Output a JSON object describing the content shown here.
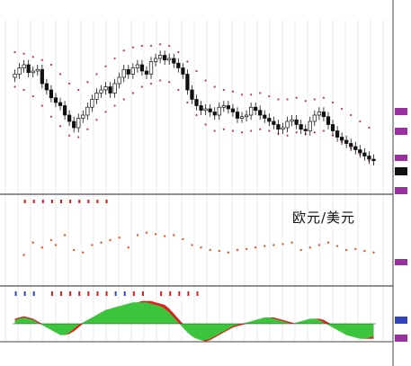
{
  "pair_label": "欧元/美元",
  "colors": {
    "bull": "#ffffff",
    "bear": "#111111",
    "band": "#c0307a",
    "signal_dot": "#e45a2b",
    "osc_green": "#3cc43c",
    "osc_red": "#e02020",
    "marker_blue": "#3344bb",
    "marker_red": "#d02020",
    "grid": "#dddddd",
    "price_tag": "#9a2f9f"
  },
  "chart_data": [
    {
      "type": "candlestick",
      "title": "",
      "xlabel": "",
      "ylabel": "",
      "x": [
        1,
        2,
        3,
        4,
        5,
        6,
        7,
        8,
        9,
        10,
        11,
        12,
        13,
        14,
        15,
        16,
        17,
        18,
        19,
        20,
        21,
        22,
        23,
        24,
        25,
        26,
        27,
        28,
        29,
        30,
        31,
        32,
        33,
        34,
        35,
        36,
        37,
        38,
        39,
        40,
        41,
        42,
        43,
        44,
        45,
        46,
        47,
        48,
        49,
        50,
        51,
        52,
        53,
        54,
        55,
        56,
        57,
        58,
        59,
        60,
        61,
        62,
        63,
        64,
        65,
        66,
        67,
        68,
        69,
        70,
        71,
        72,
        73,
        74,
        75,
        76,
        77,
        78,
        79,
        80
      ],
      "close": [
        70,
        74,
        76,
        71,
        72,
        73,
        64,
        60,
        55,
        52,
        50,
        44,
        40,
        36,
        42,
        44,
        49,
        54,
        58,
        60,
        62,
        58,
        64,
        68,
        73,
        70,
        74,
        76,
        72,
        70,
        78,
        80,
        82,
        79,
        80,
        77,
        74,
        70,
        60,
        54,
        50,
        47,
        48,
        46,
        44,
        49,
        50,
        48,
        46,
        42,
        43,
        44,
        49,
        47,
        44,
        42,
        40,
        38,
        35,
        36,
        40,
        41,
        38,
        35,
        34,
        40,
        44,
        46,
        43,
        38,
        34,
        30,
        28,
        26,
        24,
        22,
        20,
        18,
        16,
        15
      ],
      "band_upper": [
        84,
        84,
        83,
        82,
        81,
        80,
        79,
        78,
        76,
        73,
        70,
        67,
        64,
        61,
        60,
        62,
        65,
        68,
        70,
        73,
        75,
        78,
        80,
        83,
        85,
        86,
        87,
        88,
        88,
        87,
        88,
        89,
        89,
        89,
        88,
        86,
        84,
        81,
        78,
        75,
        72,
        69,
        66,
        64,
        62,
        61,
        60,
        60,
        59,
        58,
        57,
        56,
        57,
        58,
        58,
        57,
        56,
        55,
        54,
        53,
        54,
        55,
        55,
        54,
        53,
        53,
        54,
        55,
        55,
        54,
        52,
        50,
        48,
        46,
        44,
        42,
        40,
        38,
        36,
        34
      ],
      "band_lower": [
        62,
        61,
        60,
        58,
        56,
        53,
        50,
        46,
        43,
        40,
        37,
        34,
        31,
        29,
        30,
        32,
        35,
        38,
        41,
        44,
        46,
        48,
        50,
        52,
        54,
        56,
        58,
        60,
        62,
        63,
        64,
        65,
        66,
        66,
        65,
        63,
        60,
        56,
        52,
        48,
        44,
        41,
        38,
        36,
        34,
        34,
        35,
        35,
        34,
        34,
        33,
        33,
        34,
        35,
        35,
        35,
        34,
        33,
        32,
        31,
        31,
        32,
        33,
        33,
        32,
        32,
        33,
        34,
        34,
        33,
        31,
        29,
        27,
        25,
        23,
        21,
        19,
        17,
        15,
        13
      ],
      "ylim": [
        0,
        100
      ]
    },
    {
      "type": "scatter",
      "title": "",
      "x": [
        3,
        5,
        7,
        9,
        10,
        12,
        14,
        16,
        18,
        20,
        22,
        24,
        26,
        28,
        30,
        32,
        34,
        36,
        38,
        40,
        42,
        44,
        46,
        48,
        50,
        52,
        54,
        56,
        58,
        60,
        62,
        64,
        66,
        68,
        70,
        72,
        74,
        76,
        78,
        80
      ],
      "values": [
        30,
        55,
        45,
        60,
        50,
        70,
        40,
        35,
        50,
        55,
        60,
        65,
        45,
        70,
        75,
        72,
        68,
        70,
        62,
        50,
        45,
        40,
        38,
        35,
        40,
        42,
        45,
        48,
        50,
        52,
        55,
        40,
        45,
        50,
        55,
        48,
        40,
        42,
        38,
        35
      ],
      "ylim": [
        0,
        100
      ]
    },
    {
      "type": "area",
      "title": "",
      "x": [
        1,
        2,
        3,
        4,
        5,
        6,
        7,
        8,
        9,
        10,
        11,
        12,
        13,
        14,
        15,
        16,
        17,
        18,
        19,
        20,
        21,
        22,
        23,
        24,
        25,
        26,
        27,
        28,
        29,
        30,
        31,
        32,
        33,
        34,
        35,
        36,
        37,
        38,
        39,
        40,
        41,
        42,
        43,
        44,
        45,
        46,
        47,
        48,
        49,
        50,
        51,
        52,
        53,
        54,
        55,
        56,
        57,
        58,
        59,
        60,
        61,
        62,
        63,
        64,
        65,
        66,
        67,
        68,
        69,
        70,
        71,
        72,
        73,
        74,
        75,
        76,
        77,
        78,
        79,
        80
      ],
      "series": [
        {
          "values": [
            4,
            5,
            6,
            5,
            4,
            2,
            0,
            -2,
            -4,
            -6,
            -8,
            -9,
            -8,
            -6,
            -3,
            0,
            2,
            4,
            6,
            8,
            10,
            11,
            12,
            13,
            14,
            15,
            16,
            17,
            18,
            18,
            18,
            17,
            16,
            15,
            12,
            8,
            4,
            0,
            -4,
            -8,
            -11,
            -13,
            -14,
            -13,
            -11,
            -9,
            -7,
            -5,
            -3,
            -2,
            -1,
            0,
            1,
            2,
            3,
            4,
            5,
            5,
            4,
            3,
            2,
            1,
            0,
            1,
            2,
            3,
            4,
            4,
            3,
            1,
            -1,
            -3,
            -5,
            -7,
            -9,
            -10,
            -11,
            -12,
            -12,
            -12
          ]
        },
        {
          "values": [
            3,
            4,
            5,
            4,
            3,
            1,
            -1,
            -3,
            -5,
            -7,
            -9,
            -9,
            -7,
            -4,
            -1,
            1,
            3,
            5,
            7,
            9,
            11,
            12,
            13,
            14,
            15,
            16,
            17,
            17,
            17,
            17,
            16,
            15,
            14,
            12,
            9,
            5,
            1,
            -3,
            -7,
            -10,
            -12,
            -13,
            -13,
            -12,
            -10,
            -8,
            -6,
            -4,
            -2,
            -1,
            0,
            1,
            2,
            3,
            4,
            5,
            5,
            4,
            3,
            2,
            1,
            0,
            1,
            2,
            3,
            4,
            4,
            3,
            1,
            -1,
            -3,
            -5,
            -7,
            -9,
            -10,
            -11,
            -12,
            -12,
            -11,
            -10
          ]
        }
      ],
      "ylim": [
        -20,
        20
      ]
    }
  ]
}
